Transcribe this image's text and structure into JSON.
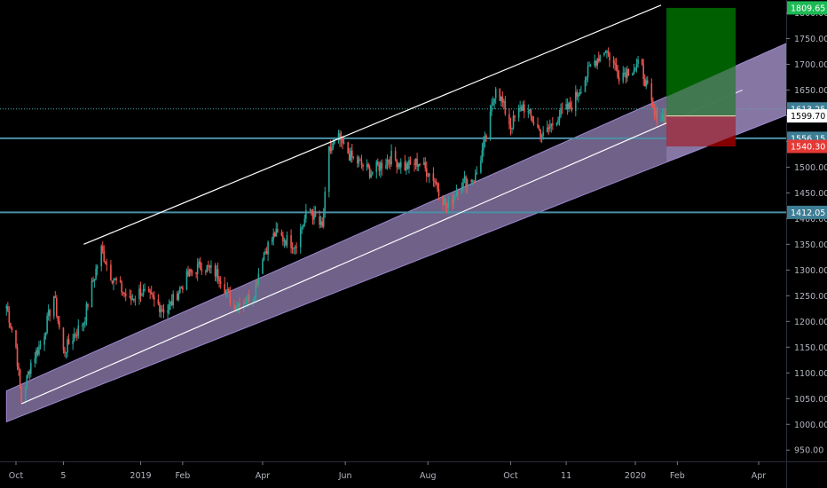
{
  "chart_data": {
    "type": "candlestick",
    "title": "",
    "xlabel": "",
    "ylabel": "",
    "ylim": [
      928,
      1825
    ],
    "colors": {
      "background": "#000000",
      "up": "#26a69a",
      "down": "#ef5350",
      "price_axis_text": "#b2b5be",
      "level_line": "#4d8fa6",
      "channel_fill": "#b39ddb",
      "trendline": "#ffffff",
      "target_zone": "#006400",
      "stop_zone": "#8b0000"
    },
    "y_ticks": [
      950,
      1000,
      1050,
      1100,
      1150,
      1200,
      1250,
      1300,
      1350,
      1400,
      1450,
      1500,
      1550,
      1600,
      1650,
      1700,
      1750,
      1800
    ],
    "x_ticks": [
      {
        "label": "Oct",
        "date": "2018-10-01"
      },
      {
        "label": "5",
        "date": "2018-11-05"
      },
      {
        "label": "2019",
        "date": "2019-01-01"
      },
      {
        "label": "Feb",
        "date": "2019-02-01"
      },
      {
        "label": "Apr",
        "date": "2019-04-01"
      },
      {
        "label": "Jun",
        "date": "2019-06-01"
      },
      {
        "label": "Aug",
        "date": "2019-08-01"
      },
      {
        "label": "Oct",
        "date": "2019-10-01"
      },
      {
        "label": "11",
        "date": "2019-11-11"
      },
      {
        "label": "2020",
        "date": "2020-01-01"
      },
      {
        "label": "Feb",
        "date": "2020-02-01"
      },
      {
        "label": "Apr",
        "date": "2020-04-01"
      }
    ],
    "price_labels": [
      {
        "value": 1809.65,
        "text": "1809.65",
        "style": "target"
      },
      {
        "value": 1613.25,
        "text": "1613.25",
        "style": "level"
      },
      {
        "value": 1599.7,
        "text": "1599.70",
        "style": "current"
      },
      {
        "value": 1556.15,
        "text": "1556.15",
        "style": "level"
      },
      {
        "value": 1540.3,
        "text": "1540.30",
        "style": "stop"
      },
      {
        "value": 1412.05,
        "text": "1412.05",
        "style": "level"
      }
    ],
    "horizontal_levels": [
      {
        "value": 1613.25,
        "style": "dotted"
      },
      {
        "value": 1556.15,
        "style": "solid"
      },
      {
        "value": 1412.05,
        "style": "solid"
      }
    ],
    "channel": {
      "start": {
        "date": "2018-09-24",
        "upper": 1065,
        "lower": 1005
      },
      "end": {
        "date": "2020-04-25",
        "upper": 1745,
        "lower": 1605
      }
    },
    "trendlines": [
      {
        "start": {
          "date": "2018-10-05",
          "value": 1040
        },
        "end": {
          "date": "2020-03-20",
          "value": 1650
        },
        "style": "mid"
      },
      {
        "start": {
          "date": "2018-11-20",
          "value": 1350
        },
        "end": {
          "date": "2020-01-20",
          "value": 1815
        },
        "style": "upper"
      }
    ],
    "position": {
      "start_date": "2020-01-24",
      "end_date": "2020-03-15",
      "entry": 1599.7,
      "target": 1809.65,
      "stop": 1540.3
    },
    "price_path": [
      [
        "2018-09-24",
        1230
      ],
      [
        "2018-10-01",
        1150
      ],
      [
        "2018-10-05",
        1045
      ],
      [
        "2018-10-12",
        1120
      ],
      [
        "2018-10-20",
        1160
      ],
      [
        "2018-10-29",
        1250
      ],
      [
        "2018-11-05",
        1140
      ],
      [
        "2018-11-12",
        1170
      ],
      [
        "2018-11-20",
        1200
      ],
      [
        "2018-11-26",
        1270
      ],
      [
        "2018-12-03",
        1340
      ],
      [
        "2018-12-10",
        1290
      ],
      [
        "2018-12-24",
        1240
      ],
      [
        "2019-01-01",
        1260
      ],
      [
        "2019-01-20",
        1220
      ],
      [
        "2019-02-05",
        1290
      ],
      [
        "2019-02-15",
        1310
      ],
      [
        "2019-02-28",
        1290
      ],
      [
        "2019-03-10",
        1230
      ],
      [
        "2019-03-25",
        1250
      ],
      [
        "2019-04-01",
        1330
      ],
      [
        "2019-04-10",
        1370
      ],
      [
        "2019-04-25",
        1350
      ],
      [
        "2019-05-05",
        1420
      ],
      [
        "2019-05-15",
        1380
      ],
      [
        "2019-05-20",
        1530
      ],
      [
        "2019-05-27",
        1555
      ],
      [
        "2019-06-05",
        1520
      ],
      [
        "2019-06-20",
        1490
      ],
      [
        "2019-07-05",
        1520
      ],
      [
        "2019-07-15",
        1500
      ],
      [
        "2019-07-25",
        1510
      ],
      [
        "2019-08-05",
        1480
      ],
      [
        "2019-08-15",
        1420
      ],
      [
        "2019-08-25",
        1470
      ],
      [
        "2019-09-05",
        1480
      ],
      [
        "2019-09-15",
        1580
      ],
      [
        "2019-09-20",
        1660
      ],
      [
        "2019-10-01",
        1580
      ],
      [
        "2019-10-10",
        1620
      ],
      [
        "2019-10-25",
        1560
      ],
      [
        "2019-11-05",
        1600
      ],
      [
        "2019-11-15",
        1620
      ],
      [
        "2019-11-30",
        1700
      ],
      [
        "2019-12-10",
        1730
      ],
      [
        "2019-12-20",
        1680
      ],
      [
        "2020-01-05",
        1700
      ],
      [
        "2020-01-15",
        1600
      ],
      [
        "2020-01-24",
        1599.7
      ]
    ]
  }
}
